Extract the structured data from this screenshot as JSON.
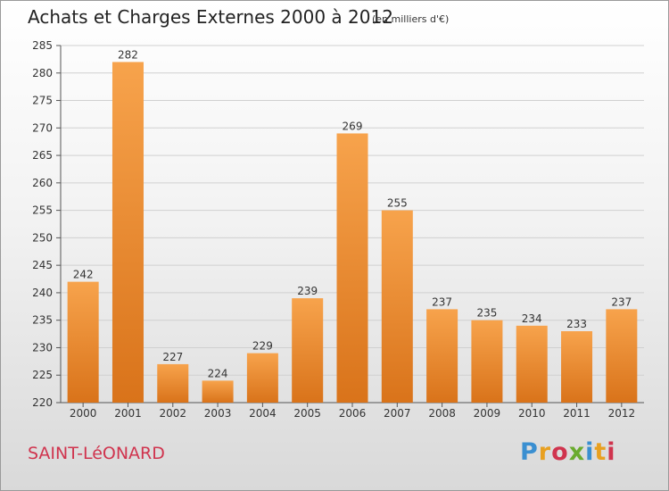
{
  "header": {
    "title": "Achats et Charges Externes 2000 à 2012",
    "subtitle": "(en milliers d'€)"
  },
  "footer": {
    "city": "SAINT-LéONARD",
    "logo_text": "Proxiti"
  },
  "colors": {
    "bar_light": "#f7a34c",
    "bar_dark": "#d9731a",
    "city": "#d0344e"
  },
  "chart_data": {
    "type": "bar",
    "title": "Achats et Charges Externes 2000 à 2012",
    "subtitle": "(en milliers d'€)",
    "categories": [
      "2000",
      "2001",
      "2002",
      "2003",
      "2004",
      "2005",
      "2006",
      "2007",
      "2008",
      "2009",
      "2010",
      "2011",
      "2012"
    ],
    "values": [
      242,
      282,
      227,
      224,
      229,
      239,
      269,
      255,
      237,
      235,
      234,
      233,
      237
    ],
    "ylim": [
      220,
      285
    ],
    "yticks": [
      220,
      225,
      230,
      235,
      240,
      245,
      250,
      255,
      260,
      265,
      270,
      275,
      280,
      285
    ],
    "grid": true,
    "xlabel": "",
    "ylabel": ""
  }
}
